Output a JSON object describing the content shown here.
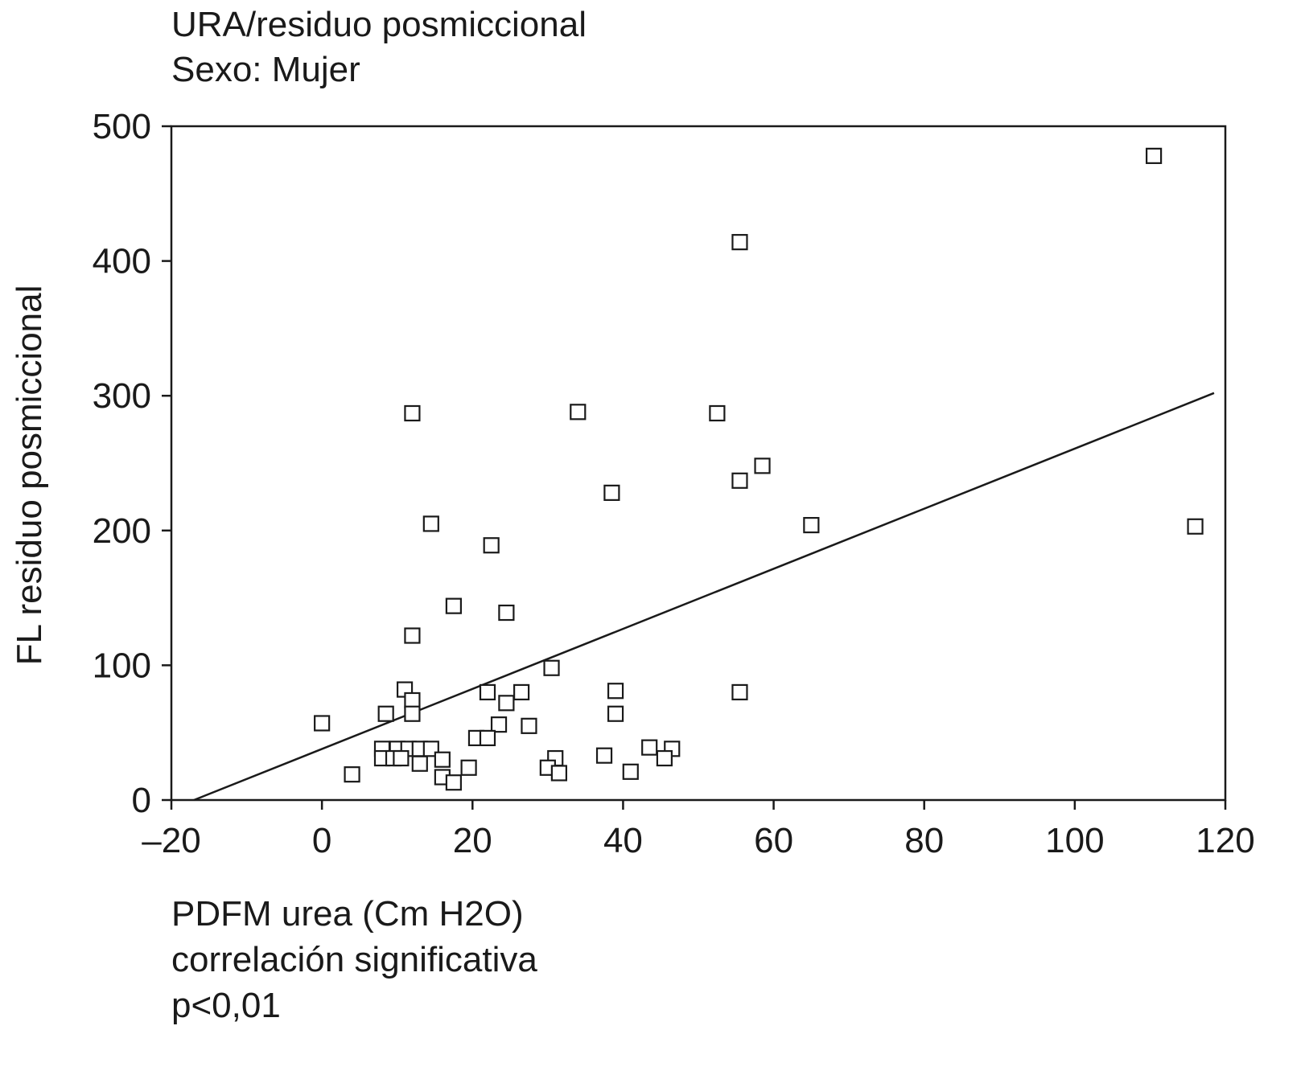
{
  "chart_data": {
    "type": "scatter",
    "title": "URA/residuo posmiccional",
    "subtitle": "Sexo: Mujer",
    "xlabel": "PDFM urea (Cm H2O)",
    "ylabel": "FL residuo posmiccional",
    "annotations": [
      "correlación significativa",
      "p<0,01"
    ],
    "xlim": [
      -20,
      120
    ],
    "ylim": [
      0,
      500
    ],
    "xticks": [
      -20,
      0,
      20,
      40,
      60,
      80,
      100,
      120
    ],
    "xtick_labels": [
      "–20",
      "0",
      "20",
      "40",
      "60",
      "80",
      "100",
      "120"
    ],
    "yticks": [
      0,
      100,
      200,
      300,
      400,
      500
    ],
    "ytick_labels": [
      "0",
      "100",
      "200",
      "300",
      "400",
      "500"
    ],
    "grid": false,
    "marker": "open-square",
    "points": [
      {
        "x": 110.5,
        "y": 478
      },
      {
        "x": 55.5,
        "y": 414
      },
      {
        "x": 12,
        "y": 287
      },
      {
        "x": 34,
        "y": 288
      },
      {
        "x": 52.5,
        "y": 287
      },
      {
        "x": 58.5,
        "y": 248
      },
      {
        "x": 55.5,
        "y": 237
      },
      {
        "x": 38.5,
        "y": 228
      },
      {
        "x": 14.5,
        "y": 205
      },
      {
        "x": 65,
        "y": 204
      },
      {
        "x": 116,
        "y": 203
      },
      {
        "x": 22.5,
        "y": 189
      },
      {
        "x": 17.5,
        "y": 144
      },
      {
        "x": 24.5,
        "y": 139
      },
      {
        "x": 12,
        "y": 122
      },
      {
        "x": 30.5,
        "y": 98
      },
      {
        "x": 11,
        "y": 82
      },
      {
        "x": 22,
        "y": 80
      },
      {
        "x": 26.5,
        "y": 80
      },
      {
        "x": 39,
        "y": 81
      },
      {
        "x": 55.5,
        "y": 80
      },
      {
        "x": 12,
        "y": 74
      },
      {
        "x": 24.5,
        "y": 72
      },
      {
        "x": 8.5,
        "y": 64
      },
      {
        "x": 12,
        "y": 64
      },
      {
        "x": 39,
        "y": 64
      },
      {
        "x": 0,
        "y": 57
      },
      {
        "x": 23.5,
        "y": 56
      },
      {
        "x": 27.5,
        "y": 55
      },
      {
        "x": 20.5,
        "y": 46
      },
      {
        "x": 22,
        "y": 46
      },
      {
        "x": 8,
        "y": 38
      },
      {
        "x": 10,
        "y": 38
      },
      {
        "x": 11.5,
        "y": 38
      },
      {
        "x": 13,
        "y": 38
      },
      {
        "x": 14.5,
        "y": 38
      },
      {
        "x": 43.5,
        "y": 39
      },
      {
        "x": 46.5,
        "y": 38
      },
      {
        "x": 8,
        "y": 31
      },
      {
        "x": 9.5,
        "y": 31
      },
      {
        "x": 10.5,
        "y": 31
      },
      {
        "x": 16,
        "y": 30
      },
      {
        "x": 31,
        "y": 31
      },
      {
        "x": 37.5,
        "y": 33
      },
      {
        "x": 45.5,
        "y": 31
      },
      {
        "x": 13,
        "y": 27
      },
      {
        "x": 19.5,
        "y": 24
      },
      {
        "x": 30,
        "y": 24
      },
      {
        "x": 31.5,
        "y": 20
      },
      {
        "x": 41,
        "y": 21
      },
      {
        "x": 4,
        "y": 19
      },
      {
        "x": 16,
        "y": 17
      },
      {
        "x": 17.5,
        "y": 13
      }
    ],
    "fit_line": {
      "x": [
        -17,
        118.5
      ],
      "y": [
        0,
        302
      ]
    }
  }
}
